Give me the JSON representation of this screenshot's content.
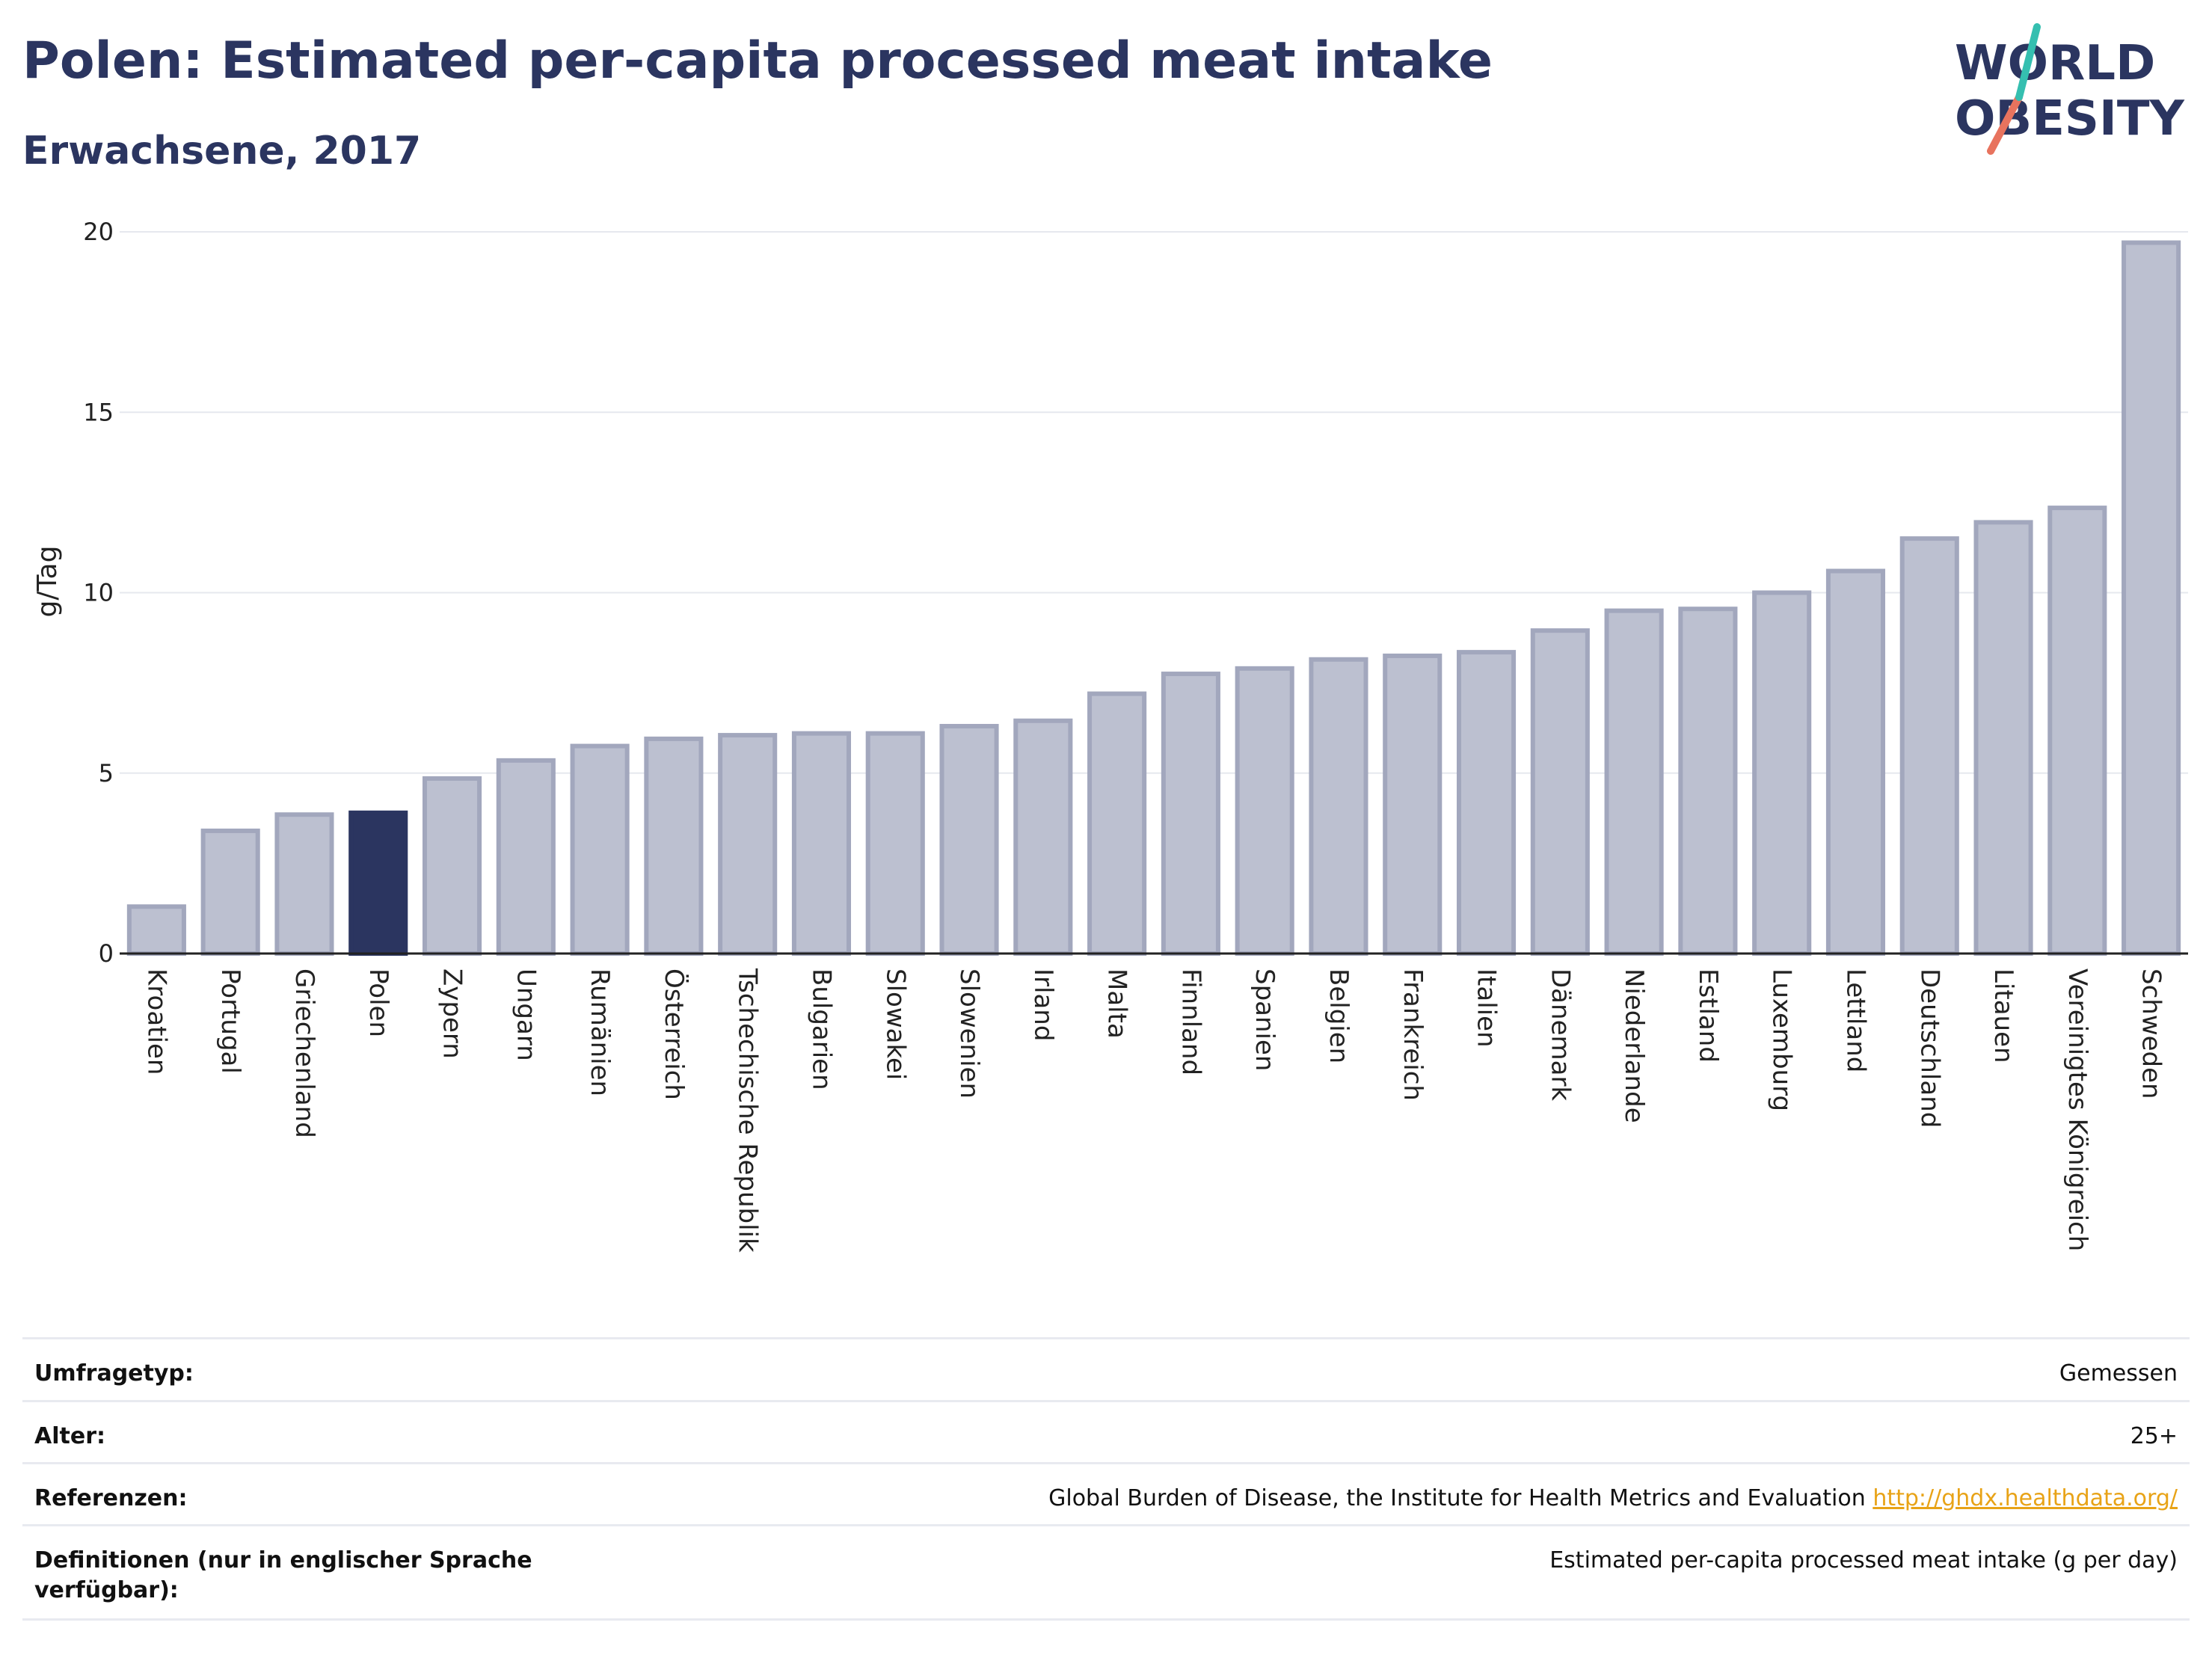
{
  "header": {
    "title": "Polen: Estimated per-capita processed meat intake",
    "subtitle": "Erwachsene, 2017"
  },
  "logo": {
    "line1": "WORLD",
    "line2": "OBESITY"
  },
  "colors": {
    "title": "#2b3560",
    "bar": "#bcc0d0",
    "bar_border": "#a2a7bd",
    "highlight": "#2b3560",
    "grid": "#e6e8ee",
    "link": "#e8a317"
  },
  "chart_data": {
    "type": "bar",
    "ylabel": "g/Tag",
    "xlabel": "",
    "ylim": [
      0,
      20
    ],
    "yticks": [
      0,
      5,
      10,
      15,
      20
    ],
    "grid": true,
    "highlight": "Polen",
    "categories": [
      "Kroatien",
      "Portugal",
      "Griechenland",
      "Polen",
      "Zypern",
      "Ungarn",
      "Rumänien",
      "Österreich",
      "Tschechische Republik",
      "Bulgarien",
      "Slowakei",
      "Slowenien",
      "Irland",
      "Malta",
      "Finnland",
      "Spanien",
      "Belgien",
      "Frankreich",
      "Italien",
      "Dänemark",
      "Niederlande",
      "Estland",
      "Luxemburg",
      "Lettland",
      "Deutschland",
      "Litauen",
      "Vereinigtes Königreich",
      "Schweden"
    ],
    "values": [
      1.3,
      3.4,
      3.85,
      3.9,
      4.85,
      5.35,
      5.75,
      5.95,
      6.05,
      6.1,
      6.1,
      6.3,
      6.45,
      7.2,
      7.75,
      7.9,
      8.15,
      8.25,
      8.35,
      8.95,
      9.5,
      9.55,
      10.0,
      10.6,
      11.5,
      11.95,
      12.35,
      19.7
    ]
  },
  "info": [
    {
      "key": "Umfragetyp:",
      "value": "Gemessen"
    },
    {
      "key": "Alter:",
      "value": "25+"
    },
    {
      "key": "Referenzen:",
      "value": "Global Burden of Disease, the Institute for Health Metrics and Evaluation",
      "link": "http://ghdx.healthdata.org/"
    },
    {
      "key": "Definitionen (nur in englischer Sprache verfügbar):",
      "value": "Estimated per-capita processed meat intake (g per day)"
    }
  ]
}
